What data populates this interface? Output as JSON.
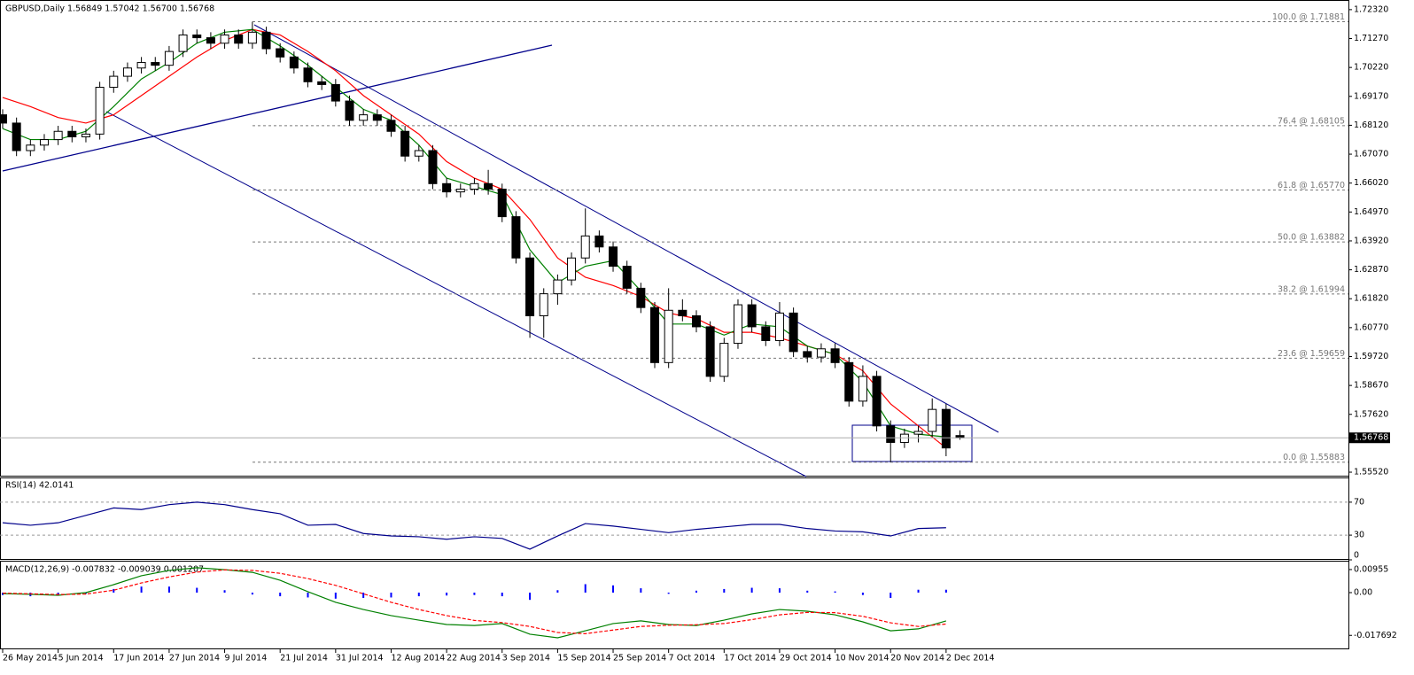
{
  "chart_data": [
    {
      "type": "candlestick",
      "title": "GBPUSD,Daily  1.56849 1.57042 1.56700 1.56768",
      "x": [
        0,
        2,
        4,
        6,
        8,
        10,
        12,
        14,
        16,
        18,
        20,
        22,
        24,
        26,
        28,
        30,
        32,
        34,
        36,
        38,
        40,
        42,
        44,
        46,
        48,
        50,
        52,
        54,
        56,
        58,
        60,
        62,
        64,
        66,
        68,
        70,
        72,
        74,
        76,
        78,
        80,
        82,
        84,
        86,
        88,
        90,
        92,
        94,
        96,
        98,
        100,
        102,
        104,
        106,
        108,
        110,
        112,
        114,
        116,
        118,
        120,
        122,
        124,
        126,
        128,
        130,
        132,
        134,
        136,
        138
      ],
      "open": [
        1.685,
        1.682,
        1.672,
        1.674,
        1.676,
        1.679,
        1.677,
        1.678,
        1.695,
        1.699,
        1.702,
        1.704,
        1.703,
        1.708,
        1.714,
        1.713,
        1.711,
        1.714,
        1.711,
        1.715,
        1.709,
        1.706,
        1.702,
        1.697,
        1.696,
        1.69,
        1.683,
        1.685,
        1.683,
        1.679,
        1.67,
        1.672,
        1.66,
        1.657,
        1.658,
        1.66,
        1.658,
        1.648,
        1.633,
        1.612,
        1.62,
        1.625,
        1.633,
        1.641,
        1.637,
        1.63,
        1.622,
        1.615,
        1.595,
        1.614,
        1.612,
        1.608,
        1.59,
        1.602,
        1.616,
        1.608,
        1.603,
        1.613,
        1.599,
        1.597,
        1.6,
        1.595,
        1.581,
        1.59,
        1.572,
        1.566,
        1.569,
        1.57,
        1.578,
        1.5685
      ],
      "high": [
        1.687,
        1.684,
        1.676,
        1.678,
        1.681,
        1.681,
        1.68,
        1.697,
        1.701,
        1.704,
        1.706,
        1.706,
        1.71,
        1.716,
        1.716,
        1.715,
        1.716,
        1.716,
        1.7188,
        1.717,
        1.711,
        1.708,
        1.704,
        1.699,
        1.698,
        1.692,
        1.687,
        1.687,
        1.685,
        1.681,
        1.674,
        1.674,
        1.662,
        1.66,
        1.662,
        1.665,
        1.66,
        1.65,
        1.635,
        1.622,
        1.627,
        1.635,
        1.651,
        1.643,
        1.639,
        1.632,
        1.624,
        1.617,
        1.622,
        1.618,
        1.614,
        1.61,
        1.604,
        1.618,
        1.618,
        1.61,
        1.617,
        1.615,
        1.601,
        1.602,
        1.602,
        1.597,
        1.594,
        1.592,
        1.574,
        1.571,
        1.572,
        1.582,
        1.58,
        1.5704
      ],
      "low": [
        1.68,
        1.67,
        1.67,
        1.672,
        1.674,
        1.675,
        1.675,
        1.676,
        1.693,
        1.697,
        1.7,
        1.701,
        1.701,
        1.706,
        1.711,
        1.709,
        1.709,
        1.709,
        1.709,
        1.707,
        1.704,
        1.7,
        1.695,
        1.694,
        1.688,
        1.681,
        1.681,
        1.681,
        1.677,
        1.668,
        1.668,
        1.658,
        1.655,
        1.655,
        1.656,
        1.656,
        1.646,
        1.631,
        1.604,
        1.604,
        1.616,
        1.623,
        1.631,
        1.635,
        1.628,
        1.62,
        1.613,
        1.593,
        1.593,
        1.61,
        1.606,
        1.588,
        1.588,
        1.6,
        1.606,
        1.601,
        1.601,
        1.597,
        1.595,
        1.595,
        1.593,
        1.579,
        1.579,
        1.57,
        1.5588,
        1.564,
        1.566,
        1.568,
        1.561,
        1.567
      ],
      "close": [
        1.682,
        1.672,
        1.674,
        1.676,
        1.679,
        1.677,
        1.678,
        1.695,
        1.699,
        1.702,
        1.704,
        1.703,
        1.708,
        1.714,
        1.713,
        1.711,
        1.714,
        1.711,
        1.715,
        1.709,
        1.706,
        1.702,
        1.697,
        1.696,
        1.69,
        1.683,
        1.685,
        1.683,
        1.679,
        1.67,
        1.672,
        1.66,
        1.657,
        1.658,
        1.66,
        1.658,
        1.648,
        1.633,
        1.612,
        1.62,
        1.625,
        1.633,
        1.641,
        1.637,
        1.63,
        1.622,
        1.615,
        1.595,
        1.614,
        1.612,
        1.608,
        1.59,
        1.602,
        1.616,
        1.608,
        1.603,
        1.613,
        1.599,
        1.597,
        1.6,
        1.595,
        1.581,
        1.59,
        1.572,
        1.566,
        1.569,
        1.57,
        1.578,
        1.564,
        1.5677
      ],
      "up_color": "#ffffff",
      "down_color": "#000000",
      "xlim": [
        0,
        194
      ],
      "xticks": [
        {
          "value": 0,
          "label": "26 May 2014"
        },
        {
          "value": 8,
          "label": "5 Jun 2014"
        },
        {
          "value": 16,
          "label": "17 Jun 2014"
        },
        {
          "value": 24,
          "label": "27 Jun 2014"
        },
        {
          "value": 32,
          "label": "9 Jul 2014"
        },
        {
          "value": 40,
          "label": "21 Jul 2014"
        },
        {
          "value": 48,
          "label": "31 Jul 2014"
        },
        {
          "value": 56,
          "label": "12 Aug 2014"
        },
        {
          "value": 64,
          "label": "22 Aug 2014"
        },
        {
          "value": 72,
          "label": "3 Sep 2014"
        },
        {
          "value": 80,
          "label": "15 Sep 2014"
        },
        {
          "value": 88,
          "label": "25 Sep 2014"
        },
        {
          "value": 96,
          "label": "7 Oct 2014"
        },
        {
          "value": 104,
          "label": "17 Oct 2014"
        },
        {
          "value": 112,
          "label": "29 Oct 2014"
        },
        {
          "value": 120,
          "label": "10 Nov 2014"
        },
        {
          "value": 128,
          "label": "20 Nov 2014"
        },
        {
          "value": 136,
          "label": "2 Dec 2014"
        }
      ],
      "ylim": [
        1.5536,
        1.7267
      ],
      "yticks": [
        {
          "value": 1.7232,
          "label": "1.72320"
        },
        {
          "value": 1.7127,
          "label": "1.71270"
        },
        {
          "value": 1.7022,
          "label": "1.70220"
        },
        {
          "value": 1.6917,
          "label": "1.69170"
        },
        {
          "value": 1.6812,
          "label": "1.68120"
        },
        {
          "value": 1.6707,
          "label": "1.67070"
        },
        {
          "value": 1.6602,
          "label": "1.66020"
        },
        {
          "value": 1.6497,
          "label": "1.64970"
        },
        {
          "value": 1.6392,
          "label": "1.63920"
        },
        {
          "value": 1.6287,
          "label": "1.62870"
        },
        {
          "value": 1.6182,
          "label": "1.61820"
        },
        {
          "value": 1.6077,
          "label": "1.60770"
        },
        {
          "value": 1.5972,
          "label": "1.59720"
        },
        {
          "value": 1.5867,
          "label": "1.58670"
        },
        {
          "value": 1.5762,
          "label": "1.57620"
        },
        {
          "value": 1.5552,
          "label": "1.55520"
        }
      ],
      "moving_averages": [
        {
          "color": "#ff0000",
          "x": [
            0,
            4,
            8,
            12,
            16,
            20,
            24,
            28,
            32,
            36,
            40,
            44,
            48,
            52,
            56,
            60,
            64,
            68,
            72,
            76,
            80,
            84,
            88,
            92,
            96,
            100,
            104,
            108,
            112,
            116,
            120,
            124,
            128,
            132,
            136
          ],
          "values": [
            1.6913,
            1.688,
            1.684,
            1.682,
            1.685,
            1.692,
            1.699,
            1.706,
            1.712,
            1.716,
            1.714,
            1.708,
            1.701,
            1.692,
            1.685,
            1.678,
            1.668,
            1.662,
            1.658,
            1.647,
            1.633,
            1.626,
            1.623,
            1.619,
            1.613,
            1.611,
            1.606,
            1.606,
            1.604,
            1.601,
            1.598,
            1.592,
            1.58,
            1.572,
            1.564
          ]
        },
        {
          "color": "#008000",
          "x": [
            0,
            4,
            8,
            12,
            16,
            20,
            24,
            28,
            32,
            36,
            40,
            44,
            48,
            52,
            56,
            60,
            64,
            68,
            72,
            76,
            80,
            84,
            88,
            92,
            96,
            100,
            104,
            108,
            112,
            116,
            120,
            124,
            128,
            132,
            136
          ],
          "values": [
            1.68,
            1.676,
            1.676,
            1.679,
            1.688,
            1.698,
            1.704,
            1.711,
            1.715,
            1.716,
            1.71,
            1.703,
            1.695,
            1.687,
            1.683,
            1.674,
            1.662,
            1.659,
            1.656,
            1.636,
            1.624,
            1.63,
            1.632,
            1.621,
            1.609,
            1.609,
            1.605,
            1.609,
            1.608,
            1.601,
            1.598,
            1.588,
            1.572,
            1.569,
            1.568
          ]
        }
      ],
      "levels": [
        {
          "value": 1.71881,
          "label": "100.0 @ 1.71881"
        },
        {
          "value": 1.68105,
          "label": "76.4 @ 1.68105"
        },
        {
          "value": 1.6577,
          "label": "61.8 @ 1.65770"
        },
        {
          "value": 1.63882,
          "label": "50.0 @ 1.63882"
        },
        {
          "value": 1.61994,
          "label": "38.2 @ 1.61994"
        },
        {
          "value": 1.59659,
          "label": "23.6 @ 1.59659"
        },
        {
          "value": 1.55883,
          "label": "0.0 @ 1.55883"
        }
      ],
      "last_price": 1.56768
    },
    {
      "type": "line",
      "title": "RSI(14) 42.0141",
      "series": [
        {
          "color": "#00008b",
          "x": [
            0,
            4,
            8,
            12,
            16,
            20,
            24,
            28,
            32,
            36,
            40,
            44,
            48,
            52,
            56,
            60,
            64,
            68,
            72,
            76,
            80,
            84,
            88,
            92,
            96,
            100,
            104,
            108,
            112,
            116,
            120,
            124,
            128,
            132,
            136
          ],
          "values": [
            45,
            42,
            45,
            54,
            63,
            61,
            67,
            70,
            67,
            61,
            56,
            42,
            43,
            32,
            29,
            28,
            25,
            28,
            26,
            13,
            29,
            44,
            41,
            37,
            33,
            37,
            40,
            43,
            43,
            38,
            35,
            34,
            29,
            38,
            39
          ]
        }
      ],
      "xlim": [
        0,
        194
      ],
      "ylim": [
        0,
        100
      ],
      "yticks": [
        70,
        30,
        0
      ]
    },
    {
      "type": "macd",
      "title": "MACD(12,26,9) -0.007832 -0.009039 0.001207",
      "x": [
        0,
        4,
        8,
        12,
        16,
        20,
        24,
        28,
        32,
        36,
        40,
        44,
        48,
        52,
        56,
        60,
        64,
        68,
        72,
        76,
        80,
        84,
        88,
        92,
        96,
        100,
        104,
        108,
        112,
        116,
        120,
        124,
        128,
        132,
        136
      ],
      "histogram": [
        -0.001,
        -0.0015,
        -0.0012,
        -0.0005,
        0.0015,
        0.0025,
        0.0025,
        0.002,
        0.001,
        -0.0008,
        -0.0015,
        -0.002,
        -0.0025,
        -0.0022,
        -0.002,
        -0.0015,
        -0.0012,
        -0.001,
        -0.0015,
        -0.003,
        0.001,
        0.0035,
        0.003,
        0.0018,
        -0.0005,
        0.0008,
        0.0015,
        0.002,
        0.0018,
        0.0008,
        0.0005,
        -0.001,
        -0.0022,
        0.0012,
        0.0012
      ],
      "histogram_color": "#0000ff",
      "series": [
        {
          "color": "#008000",
          "values": [
            -0.0004,
            -0.0007,
            -0.0011,
            0,
            0.0033,
            0.007,
            0.0092,
            0.0103,
            0.0095,
            0.0084,
            0.0051,
            0.0004,
            -0.004,
            -0.007,
            -0.0095,
            -0.0114,
            -0.0132,
            -0.0136,
            -0.0128,
            -0.0172,
            -0.0187,
            -0.0158,
            -0.0128,
            -0.0117,
            -0.0132,
            -0.0136,
            -0.0114,
            -0.0088,
            -0.007,
            -0.0077,
            -0.0092,
            -0.0121,
            -0.0158,
            -0.015,
            -0.0117
          ]
        },
        {
          "color": "#ff0000",
          "dash": true,
          "values": [
            -0.0002,
            -0.0005,
            -0.0008,
            -0.0006,
            0.001,
            0.004,
            0.0065,
            0.0085,
            0.0094,
            0.0092,
            0.008,
            0.0058,
            0.003,
            -0.0005,
            -0.004,
            -0.007,
            -0.0095,
            -0.0115,
            -0.0124,
            -0.014,
            -0.0165,
            -0.017,
            -0.0155,
            -0.014,
            -0.0135,
            -0.0133,
            -0.0128,
            -0.0112,
            -0.0092,
            -0.0082,
            -0.0083,
            -0.0098,
            -0.0125,
            -0.014,
            -0.013
          ]
        }
      ],
      "xlim": [
        0,
        194
      ],
      "ylim": [
        -0.0231,
        0.0121
      ],
      "yticks": [
        0.00955,
        {
          "value": 0,
          "label": "0.00"
        },
        -0.017692
      ]
    }
  ]
}
